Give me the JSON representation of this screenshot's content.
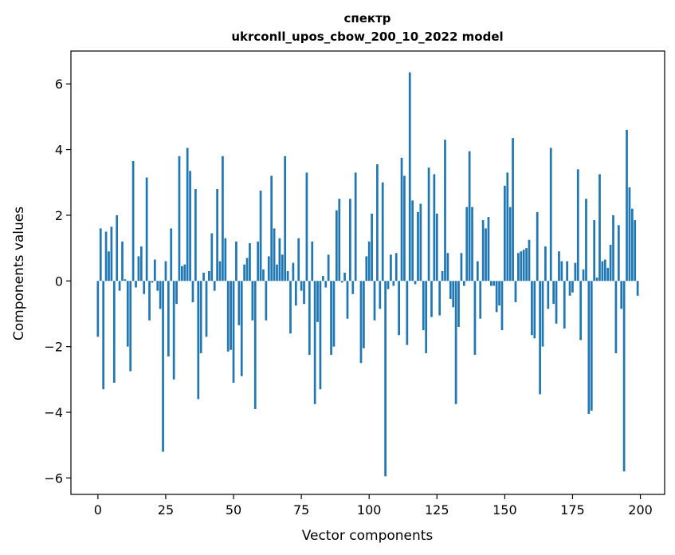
{
  "chart_data": {
    "type": "bar",
    "title": "спектр",
    "subtitle": "ukrconll_upos_cbow_200_10_2022 model",
    "xlabel": "Vector components",
    "ylabel": "Components values",
    "xlim": [
      -9.95,
      208.95
    ],
    "ylim": [
      -6.5,
      7.0
    ],
    "xticks": [
      0,
      25,
      50,
      75,
      100,
      125,
      150,
      175,
      200
    ],
    "yticks": [
      -6,
      -4,
      -2,
      0,
      2,
      4,
      6
    ],
    "xtick_labels": [
      "0",
      "25",
      "50",
      "75",
      "100",
      "125",
      "150",
      "175",
      "200"
    ],
    "ytick_labels": [
      "−6",
      "−4",
      "−2",
      "0",
      "2",
      "4",
      "6"
    ],
    "grid": false,
    "bar_color": "#1f77b4",
    "x": [
      0,
      1,
      2,
      3,
      4,
      5,
      6,
      7,
      8,
      9,
      10,
      11,
      12,
      13,
      14,
      15,
      16,
      17,
      18,
      19,
      20,
      21,
      22,
      23,
      24,
      25,
      26,
      27,
      28,
      29,
      30,
      31,
      32,
      33,
      34,
      35,
      36,
      37,
      38,
      39,
      40,
      41,
      42,
      43,
      44,
      45,
      46,
      47,
      48,
      49,
      50,
      51,
      52,
      53,
      54,
      55,
      56,
      57,
      58,
      59,
      60,
      61,
      62,
      63,
      64,
      65,
      66,
      67,
      68,
      69,
      70,
      71,
      72,
      73,
      74,
      75,
      76,
      77,
      78,
      79,
      80,
      81,
      82,
      83,
      84,
      85,
      86,
      87,
      88,
      89,
      90,
      91,
      92,
      93,
      94,
      95,
      96,
      97,
      98,
      99,
      100,
      101,
      102,
      103,
      104,
      105,
      106,
      107,
      108,
      109,
      110,
      111,
      112,
      113,
      114,
      115,
      116,
      117,
      118,
      119,
      120,
      121,
      122,
      123,
      124,
      125,
      126,
      127,
      128,
      129,
      130,
      131,
      132,
      133,
      134,
      135,
      136,
      137,
      138,
      139,
      140,
      141,
      142,
      143,
      144,
      145,
      146,
      147,
      148,
      149,
      150,
      151,
      152,
      153,
      154,
      155,
      156,
      157,
      158,
      159,
      160,
      161,
      162,
      163,
      164,
      165,
      166,
      167,
      168,
      169,
      170,
      171,
      172,
      173,
      174,
      175,
      176,
      177,
      178,
      179,
      180,
      181,
      182,
      183,
      184,
      185,
      186,
      187,
      188,
      189,
      190,
      191,
      192,
      193,
      194,
      195,
      196,
      197,
      198,
      199
    ],
    "values": [
      -1.7,
      1.6,
      -3.3,
      1.5,
      0.9,
      1.65,
      -3.1,
      2.0,
      -0.3,
      1.2,
      0.05,
      -2.0,
      -2.75,
      3.65,
      -0.2,
      0.75,
      1.05,
      -0.4,
      3.15,
      -1.2,
      -0.05,
      0.65,
      -0.3,
      -0.85,
      -5.2,
      0.6,
      -2.3,
      1.6,
      -3.0,
      -0.7,
      3.8,
      0.45,
      0.5,
      4.05,
      3.35,
      -0.65,
      2.8,
      -3.6,
      -2.2,
      0.25,
      -1.7,
      0.3,
      1.45,
      -0.3,
      2.8,
      0.6,
      3.8,
      1.3,
      -2.15,
      -2.1,
      -3.1,
      1.2,
      -1.35,
      -2.9,
      0.5,
      0.7,
      1.15,
      -1.2,
      -3.9,
      1.2,
      2.75,
      0.35,
      -1.2,
      0.75,
      3.2,
      1.6,
      0.5,
      1.3,
      0.8,
      3.8,
      0.3,
      -1.6,
      0.55,
      -0.75,
      1.3,
      -0.3,
      -0.7,
      3.3,
      -2.25,
      1.2,
      -3.75,
      -1.25,
      -3.3,
      0.15,
      -0.2,
      0.8,
      -2.25,
      -2.0,
      2.15,
      2.5,
      -0.05,
      0.25,
      -1.15,
      2.5,
      -0.4,
      3.3,
      0.0,
      -2.5,
      -2.05,
      0.75,
      1.2,
      2.05,
      -1.2,
      3.55,
      -0.85,
      3.0,
      -5.95,
      -0.25,
      0.8,
      -0.15,
      0.85,
      -1.65,
      3.75,
      3.2,
      -1.95,
      6.35,
      2.45,
      -0.1,
      2.1,
      2.35,
      -1.5,
      -2.2,
      3.45,
      -1.1,
      3.25,
      2.05,
      -1.05,
      0.3,
      4.3,
      0.85,
      -0.55,
      -0.8,
      -3.75,
      -1.4,
      0.85,
      -0.15,
      2.25,
      3.95,
      2.25,
      -2.25,
      0.6,
      -1.15,
      1.85,
      1.6,
      1.95,
      -0.15,
      -0.15,
      -0.95,
      -0.75,
      -1.5,
      2.9,
      3.3,
      2.25,
      4.35,
      -0.65,
      0.85,
      0.9,
      0.95,
      1.0,
      1.25,
      -1.65,
      -1.75,
      2.1,
      -3.45,
      -2.0,
      1.05,
      -0.85,
      4.05,
      -0.7,
      -1.3,
      0.9,
      0.6,
      -1.45,
      0.6,
      -0.45,
      -0.35,
      0.55,
      3.4,
      -1.8,
      0.35,
      2.5,
      -4.05,
      -3.95,
      1.85,
      0.1,
      3.25,
      0.6,
      0.65,
      0.4,
      1.1,
      2.0,
      -2.2,
      1.7,
      -0.85,
      -5.8,
      4.6,
      2.85,
      2.2,
      1.85,
      -0.45
    ]
  }
}
